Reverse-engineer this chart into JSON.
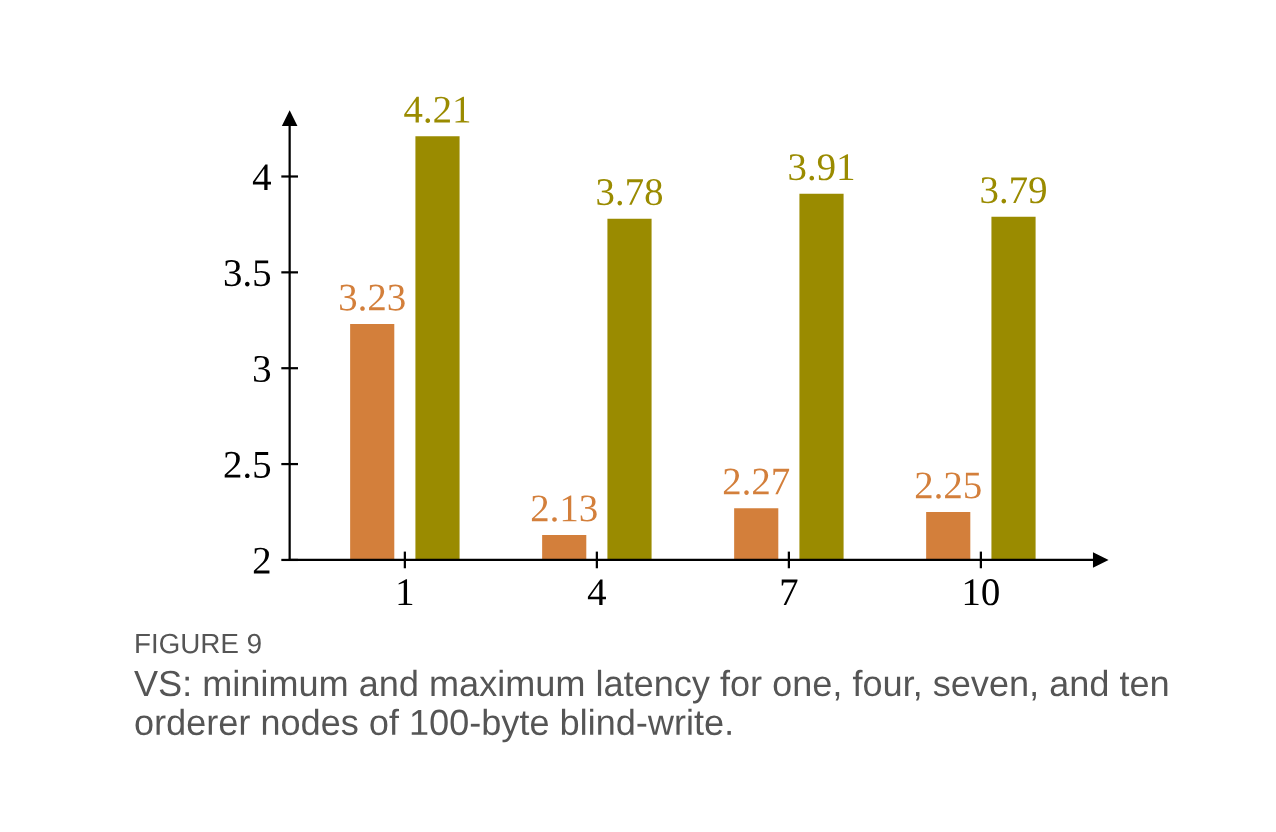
{
  "chart_data": {
    "type": "bar",
    "categories": [
      "1",
      "4",
      "7",
      "10"
    ],
    "series": [
      {
        "color": "#d37f3b",
        "values": [
          3.23,
          2.13,
          2.27,
          2.25
        ]
      },
      {
        "color": "#9a8b00",
        "values": [
          4.21,
          3.78,
          3.91,
          3.79
        ]
      }
    ],
    "ylim": [
      2,
      4.3
    ],
    "yticks": [
      2,
      2.5,
      3,
      3.5,
      4
    ],
    "data_labels": true,
    "grid": false,
    "legend": false,
    "annotations": [
      "FIGURE 9",
      "VS: minimum and maximum latency for one, four, seven, and ten orderer nodes of 100-byte blind-write."
    ]
  }
}
